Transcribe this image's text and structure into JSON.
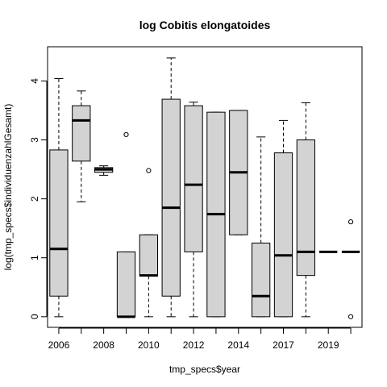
{
  "chart_data": {
    "type": "boxplot",
    "title": "log Cobitis elongatoides",
    "xlabel": "tmp_specs$year",
    "ylabel": "log(tmp_specs$individuenzahlGesamt)",
    "ylim": [
      -0.18,
      4.58
    ],
    "y_ticks": [
      0,
      1,
      2,
      3,
      4
    ],
    "x_tick_labels": [
      "2006",
      "2008",
      "2010",
      "2012",
      "2014",
      "2017",
      "2019"
    ],
    "x_tick_positions": [
      1,
      3,
      5,
      7,
      9,
      11,
      13
    ],
    "grid": false,
    "box_fill": "#d3d3d3",
    "boxes": [
      {
        "position": 1,
        "whisker_low": 0,
        "q1": 0.35,
        "median": 1.15,
        "q3": 2.83,
        "whisker_high": 4.04,
        "outliers": []
      },
      {
        "position": 2,
        "whisker_low": 1.95,
        "q1": 2.64,
        "median": 3.33,
        "q3": 3.58,
        "whisker_high": 3.83,
        "outliers": []
      },
      {
        "position": 3,
        "whisker_low": 2.4,
        "q1": 2.45,
        "median": 2.5,
        "q3": 2.53,
        "whisker_high": 2.56,
        "outliers": []
      },
      {
        "position": 4,
        "whisker_low": 0,
        "q1": 0,
        "median": 0,
        "q3": 1.1,
        "whisker_high": 1.1,
        "outliers": [
          3.09
        ]
      },
      {
        "position": 5,
        "whisker_low": 0,
        "q1": 0.69,
        "median": 0.7,
        "q3": 1.39,
        "whisker_high": 1.39,
        "outliers": [
          2.48
        ]
      },
      {
        "position": 6,
        "whisker_low": 0,
        "q1": 0.35,
        "median": 1.85,
        "q3": 3.69,
        "whisker_high": 4.39,
        "outliers": []
      },
      {
        "position": 7,
        "whisker_low": 0,
        "q1": 1.1,
        "median": 2.24,
        "q3": 3.58,
        "whisker_high": 3.64,
        "outliers": []
      },
      {
        "position": 8,
        "whisker_low": 0,
        "q1": 0,
        "median": 1.74,
        "q3": 3.47,
        "whisker_high": 3.47,
        "outliers": []
      },
      {
        "position": 9,
        "whisker_low": 1.39,
        "q1": 1.39,
        "median": 2.45,
        "q3": 3.5,
        "whisker_high": 3.5,
        "outliers": []
      },
      {
        "position": 10,
        "whisker_low": 0,
        "q1": 0,
        "median": 0.35,
        "q3": 1.25,
        "whisker_high": 3.05,
        "outliers": []
      },
      {
        "position": 11,
        "whisker_low": 0,
        "q1": 0,
        "median": 1.04,
        "q3": 2.78,
        "whisker_high": 3.33,
        "outliers": []
      },
      {
        "position": 12,
        "whisker_low": 0,
        "q1": 0.7,
        "median": 1.1,
        "q3": 3.0,
        "whisker_high": 3.63,
        "outliers": []
      },
      {
        "position": 13,
        "whisker_low": 1.1,
        "q1": 1.1,
        "median": 1.1,
        "q3": 1.1,
        "whisker_high": 1.1,
        "outliers": []
      },
      {
        "position": 14,
        "whisker_low": 1.1,
        "q1": 1.1,
        "median": 1.1,
        "q3": 1.1,
        "whisker_high": 1.1,
        "outliers": [
          1.61,
          0
        ]
      }
    ]
  }
}
